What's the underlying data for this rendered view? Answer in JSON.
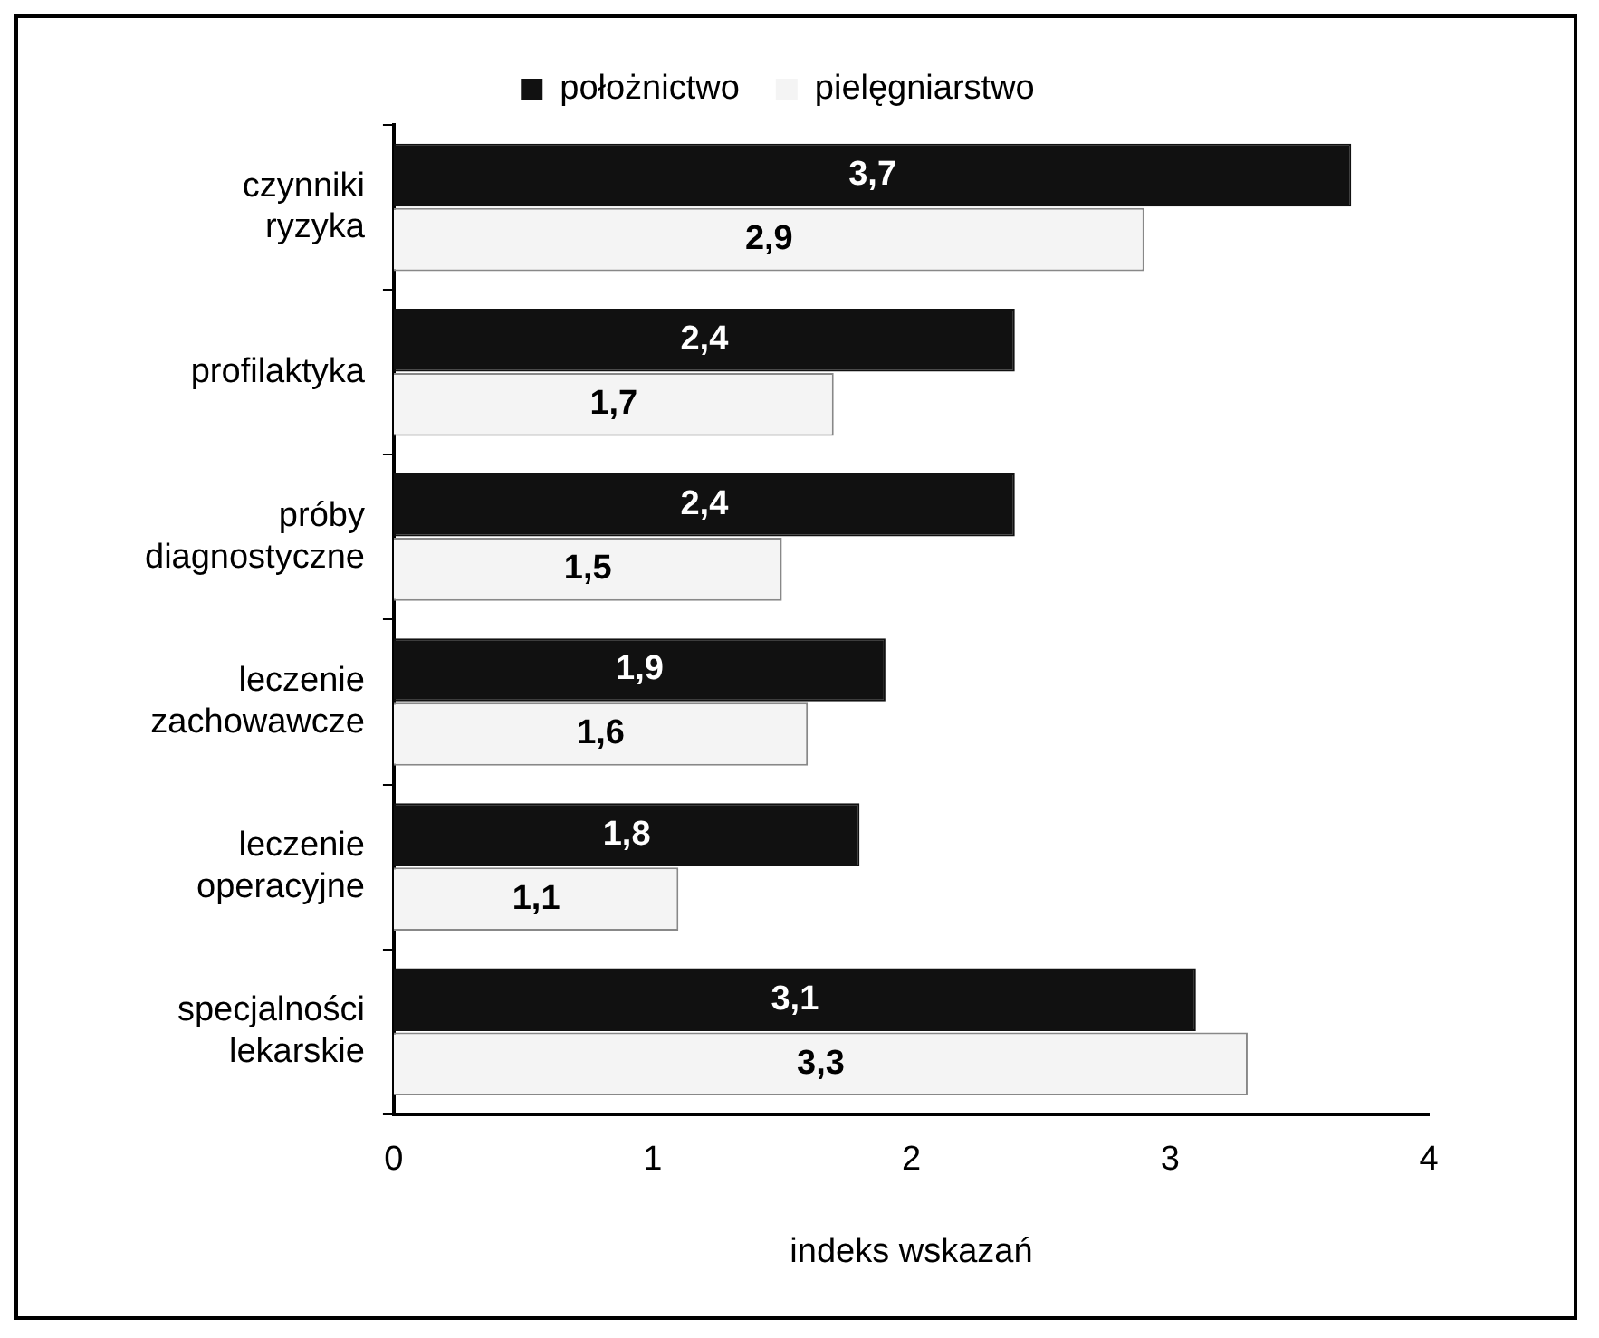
{
  "chart_data": {
    "type": "bar",
    "orientation": "horizontal",
    "xlabel": "indeks wskazań",
    "categories": [
      "czynniki ryzyka",
      "profilaktyka",
      "próby diagnostyczne",
      "leczenie zachowawcze",
      "leczenie operacyjne",
      "specjalności lekarskie"
    ],
    "series": [
      {
        "name": "położnictwo",
        "color": "#111111",
        "values": [
          3.7,
          2.4,
          2.4,
          1.9,
          1.8,
          3.1
        ],
        "value_labels": [
          "3,7",
          "2,4",
          "2,4",
          "1,9",
          "1,8",
          "3,1"
        ]
      },
      {
        "name": "pielęgniarstwo",
        "color": "#f4f4f4",
        "values": [
          2.9,
          1.7,
          1.5,
          1.6,
          1.1,
          3.3
        ],
        "value_labels": [
          "2,9",
          "1,7",
          "1,5",
          "1,6",
          "1,1",
          "3,3"
        ]
      }
    ],
    "xlim": [
      0,
      4
    ],
    "xticks": [
      0,
      1,
      2,
      3,
      4
    ],
    "grid": false,
    "legend": "top"
  }
}
